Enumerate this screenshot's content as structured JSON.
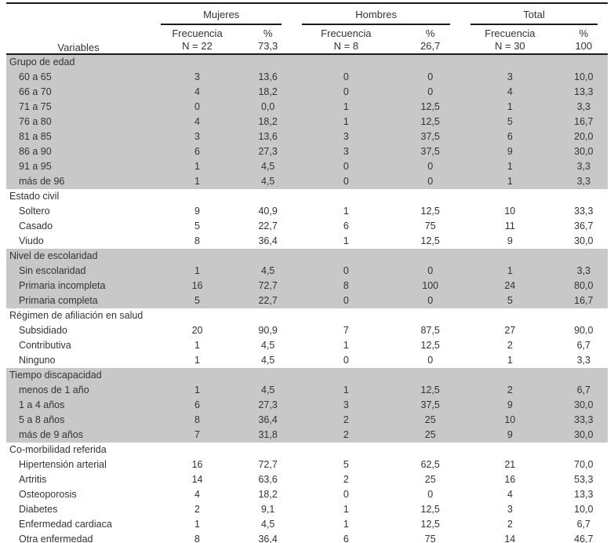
{
  "table": {
    "variables_label": "Variables",
    "groups": [
      "Mujeres",
      "Hombres",
      "Total"
    ],
    "subheaders": [
      {
        "line1": "Frecuencia",
        "line2": "N = 22"
      },
      {
        "line1": "%",
        "line2": "73,3"
      },
      {
        "line1": "Frecuencia",
        "line2": "N = 8"
      },
      {
        "line1": "%",
        "line2": "26,7"
      },
      {
        "line1": "Frecuencia",
        "line2": "N = 30"
      },
      {
        "line1": "%",
        "line2": "100"
      }
    ],
    "sections": [
      {
        "label": "Grupo de edad",
        "shaded": true,
        "rows": [
          {
            "label": "60 a 65",
            "values": [
              "3",
              "13,6",
              "0",
              "0",
              "3",
              "10,0"
            ]
          },
          {
            "label": "66 a 70",
            "values": [
              "4",
              "18,2",
              "0",
              "0",
              "4",
              "13,3"
            ]
          },
          {
            "label": "71 a 75",
            "values": [
              "0",
              "0,0",
              "1",
              "12,5",
              "1",
              "3,3"
            ]
          },
          {
            "label": "76 a 80",
            "values": [
              "4",
              "18,2",
              "1",
              "12,5",
              "5",
              "16,7"
            ]
          },
          {
            "label": "81 a 85",
            "values": [
              "3",
              "13,6",
              "3",
              "37,5",
              "6",
              "20,0"
            ]
          },
          {
            "label": "86 a 90",
            "values": [
              "6",
              "27,3",
              "3",
              "37,5",
              "9",
              "30,0"
            ]
          },
          {
            "label": "91 a 95",
            "values": [
              "1",
              "4,5",
              "0",
              "0",
              "1",
              "3,3"
            ]
          },
          {
            "label": "más de 96",
            "values": [
              "1",
              "4,5",
              "0",
              "0",
              "1",
              "3,3"
            ]
          }
        ]
      },
      {
        "label": "Estado civil",
        "shaded": false,
        "rows": [
          {
            "label": "Soltero",
            "values": [
              "9",
              "40,9",
              "1",
              "12,5",
              "10",
              "33,3"
            ]
          },
          {
            "label": "Casado",
            "values": [
              "5",
              "22,7",
              "6",
              "75",
              "11",
              "36,7"
            ]
          },
          {
            "label": "Viudo",
            "values": [
              "8",
              "36,4",
              "1",
              "12,5",
              "9",
              "30,0"
            ]
          }
        ]
      },
      {
        "label": "Nivel de escolaridad",
        "shaded": true,
        "rows": [
          {
            "label": "Sin escolaridad",
            "values": [
              "1",
              "4,5",
              "0",
              "0",
              "1",
              "3,3"
            ]
          },
          {
            "label": "Primaria incompleta",
            "values": [
              "16",
              "72,7",
              "8",
              "100",
              "24",
              "80,0"
            ]
          },
          {
            "label": "Primaria completa",
            "values": [
              "5",
              "22,7",
              "0",
              "0",
              "5",
              "16,7"
            ]
          }
        ]
      },
      {
        "label": "Régimen de afiliación en salud",
        "shaded": false,
        "rows": [
          {
            "label": "Subsidiado",
            "values": [
              "20",
              "90,9",
              "7",
              "87,5",
              "27",
              "90,0"
            ]
          },
          {
            "label": "Contributiva",
            "values": [
              "1",
              "4,5",
              "1",
              "12,5",
              "2",
              "6,7"
            ]
          },
          {
            "label": "Ninguno",
            "values": [
              "1",
              "4,5",
              "0",
              "0",
              "1",
              "3,3"
            ]
          }
        ]
      },
      {
        "label": "Tiempo discapacidad",
        "shaded": true,
        "rows": [
          {
            "label": "menos de 1 año",
            "values": [
              "1",
              "4,5",
              "1",
              "12,5",
              "2",
              "6,7"
            ]
          },
          {
            "label": "1 a 4 años",
            "values": [
              "6",
              "27,3",
              "3",
              "37,5",
              "9",
              "30,0"
            ]
          },
          {
            "label": "5 a 8 años",
            "values": [
              "8",
              "36,4",
              "2",
              "25",
              "10",
              "33,3"
            ]
          },
          {
            "label": "más de 9 años",
            "values": [
              "7",
              "31,8",
              "2",
              "25",
              "9",
              "30,0"
            ]
          }
        ]
      },
      {
        "label": "Co-morbilidad referida",
        "shaded": false,
        "rows": [
          {
            "label": "Hipertensión arterial",
            "values": [
              "16",
              "72,7",
              "5",
              "62,5",
              "21",
              "70,0"
            ]
          },
          {
            "label": "Artritis",
            "values": [
              "14",
              "63,6",
              "2",
              "25",
              "16",
              "53,3"
            ]
          },
          {
            "label": "Osteoporosis",
            "values": [
              "4",
              "18,2",
              "0",
              "0",
              "4",
              "13,3"
            ]
          },
          {
            "label": "Diabetes",
            "values": [
              "2",
              "9,1",
              "1",
              "12,5",
              "3",
              "10,0"
            ]
          },
          {
            "label": "Enfermedad cardiaca",
            "values": [
              "1",
              "4,5",
              "1",
              "12,5",
              "2",
              "6,7"
            ]
          },
          {
            "label": "Otra enfermedad",
            "values": [
              "8",
              "36,4",
              "6",
              "75",
              "14",
              "46,7"
            ]
          }
        ]
      }
    ]
  },
  "colors": {
    "band": "#c8c8c8",
    "text": "#333333",
    "border": "#1a1a1a"
  }
}
